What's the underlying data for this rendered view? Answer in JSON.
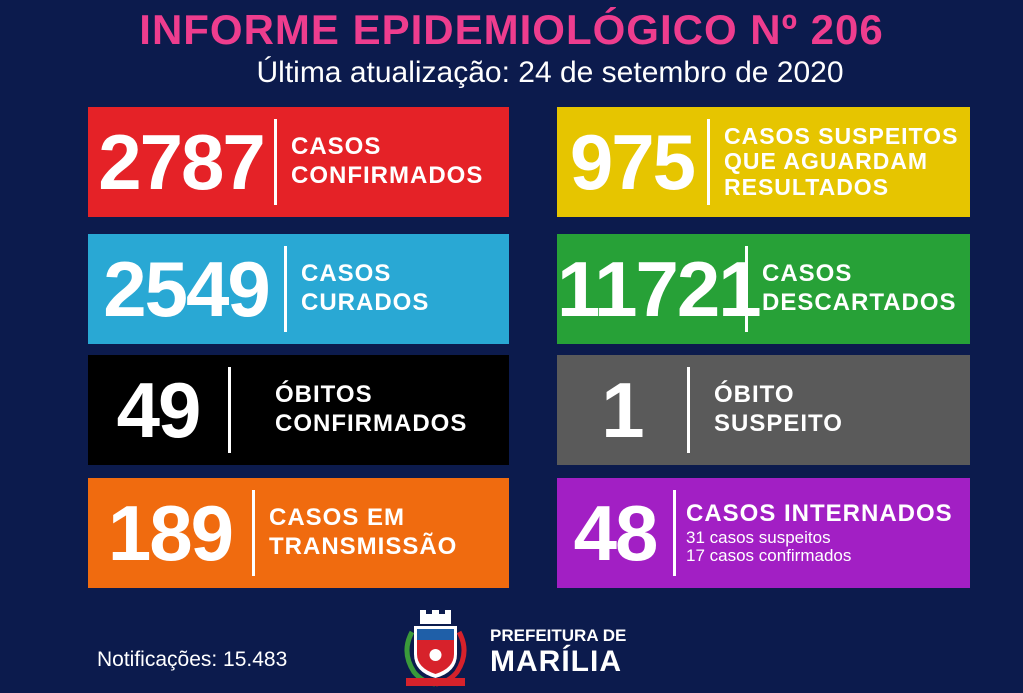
{
  "header": {
    "title": "INFORME EPIDEMIOLÓGICO Nº 206",
    "subtitle": "Última atualização: 24 de setembro de 2020"
  },
  "cards": {
    "confirmed": {
      "value": "2787",
      "line1": "CASOS",
      "line2": "CONFIRMADOS",
      "color": "#e52227"
    },
    "suspected": {
      "value": "975",
      "line1": "CASOS SUSPEITOS",
      "line2": "QUE AGUARDAM",
      "line3": "RESULTADOS",
      "color": "#e6c500"
    },
    "cured": {
      "value": "2549",
      "line1": "CASOS",
      "line2": "CURADOS",
      "color": "#29a8d4"
    },
    "discarded": {
      "value": "11721",
      "line1": "CASOS",
      "line2": "DESCARTADOS",
      "color": "#27a137"
    },
    "deaths": {
      "value": "49",
      "line1": "ÓBITOS",
      "line2": "CONFIRMADOS",
      "color": "#000000"
    },
    "suspect_death": {
      "value": "1",
      "line1": "ÓBITO",
      "line2": "SUSPEITO",
      "color": "#5a5a5a"
    },
    "transmission": {
      "value": "189",
      "line1": "CASOS EM",
      "line2": "TRANSMISSÃO",
      "color": "#f06b0f"
    },
    "hospitalized": {
      "value": "48",
      "line1": "CASOS INTERNADOS",
      "line2": "31 casos suspeitos",
      "line3": "17 casos confirmados",
      "color": "#a21fc4"
    }
  },
  "footer": {
    "notifications": "Notificações: 15.483",
    "org_line1": "PREFEITURA DE",
    "org_line2": "MARÍLIA"
  }
}
